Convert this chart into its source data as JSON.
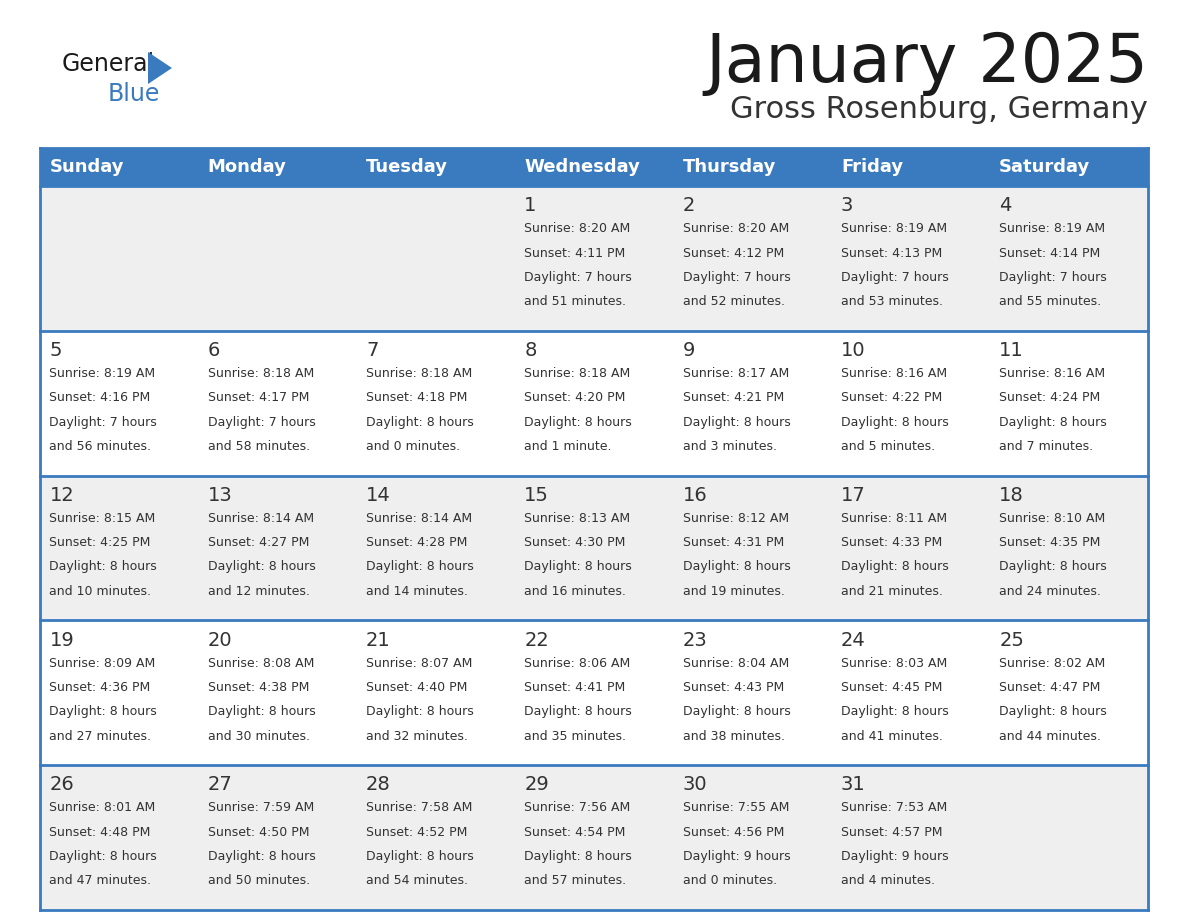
{
  "title": "January 2025",
  "subtitle": "Gross Rosenburg, Germany",
  "days_of_week": [
    "Sunday",
    "Monday",
    "Tuesday",
    "Wednesday",
    "Thursday",
    "Friday",
    "Saturday"
  ],
  "header_bg": "#3a7abf",
  "header_text": "#ffffff",
  "row_bg_even": "#efefef",
  "row_bg_odd": "#ffffff",
  "cell_text": "#333333",
  "day_num_color": "#333333",
  "border_color": "#3a7abf",
  "title_color": "#1a1a1a",
  "subtitle_color": "#333333",
  "logo_general_color": "#1a1a1a",
  "logo_blue_color": "#3a7abf",
  "calendar_data": [
    [
      {
        "day": null,
        "sunrise": null,
        "sunset": null,
        "daylight": null
      },
      {
        "day": null,
        "sunrise": null,
        "sunset": null,
        "daylight": null
      },
      {
        "day": null,
        "sunrise": null,
        "sunset": null,
        "daylight": null
      },
      {
        "day": 1,
        "sunrise": "8:20 AM",
        "sunset": "4:11 PM",
        "daylight": "7 hours",
        "daylight2": "and 51 minutes."
      },
      {
        "day": 2,
        "sunrise": "8:20 AM",
        "sunset": "4:12 PM",
        "daylight": "7 hours",
        "daylight2": "and 52 minutes."
      },
      {
        "day": 3,
        "sunrise": "8:19 AM",
        "sunset": "4:13 PM",
        "daylight": "7 hours",
        "daylight2": "and 53 minutes."
      },
      {
        "day": 4,
        "sunrise": "8:19 AM",
        "sunset": "4:14 PM",
        "daylight": "7 hours",
        "daylight2": "and 55 minutes."
      }
    ],
    [
      {
        "day": 5,
        "sunrise": "8:19 AM",
        "sunset": "4:16 PM",
        "daylight": "7 hours",
        "daylight2": "and 56 minutes."
      },
      {
        "day": 6,
        "sunrise": "8:18 AM",
        "sunset": "4:17 PM",
        "daylight": "7 hours",
        "daylight2": "and 58 minutes."
      },
      {
        "day": 7,
        "sunrise": "8:18 AM",
        "sunset": "4:18 PM",
        "daylight": "8 hours",
        "daylight2": "and 0 minutes."
      },
      {
        "day": 8,
        "sunrise": "8:18 AM",
        "sunset": "4:20 PM",
        "daylight": "8 hours",
        "daylight2": "and 1 minute."
      },
      {
        "day": 9,
        "sunrise": "8:17 AM",
        "sunset": "4:21 PM",
        "daylight": "8 hours",
        "daylight2": "and 3 minutes."
      },
      {
        "day": 10,
        "sunrise": "8:16 AM",
        "sunset": "4:22 PM",
        "daylight": "8 hours",
        "daylight2": "and 5 minutes."
      },
      {
        "day": 11,
        "sunrise": "8:16 AM",
        "sunset": "4:24 PM",
        "daylight": "8 hours",
        "daylight2": "and 7 minutes."
      }
    ],
    [
      {
        "day": 12,
        "sunrise": "8:15 AM",
        "sunset": "4:25 PM",
        "daylight": "8 hours",
        "daylight2": "and 10 minutes."
      },
      {
        "day": 13,
        "sunrise": "8:14 AM",
        "sunset": "4:27 PM",
        "daylight": "8 hours",
        "daylight2": "and 12 minutes."
      },
      {
        "day": 14,
        "sunrise": "8:14 AM",
        "sunset": "4:28 PM",
        "daylight": "8 hours",
        "daylight2": "and 14 minutes."
      },
      {
        "day": 15,
        "sunrise": "8:13 AM",
        "sunset": "4:30 PM",
        "daylight": "8 hours",
        "daylight2": "and 16 minutes."
      },
      {
        "day": 16,
        "sunrise": "8:12 AM",
        "sunset": "4:31 PM",
        "daylight": "8 hours",
        "daylight2": "and 19 minutes."
      },
      {
        "day": 17,
        "sunrise": "8:11 AM",
        "sunset": "4:33 PM",
        "daylight": "8 hours",
        "daylight2": "and 21 minutes."
      },
      {
        "day": 18,
        "sunrise": "8:10 AM",
        "sunset": "4:35 PM",
        "daylight": "8 hours",
        "daylight2": "and 24 minutes."
      }
    ],
    [
      {
        "day": 19,
        "sunrise": "8:09 AM",
        "sunset": "4:36 PM",
        "daylight": "8 hours",
        "daylight2": "and 27 minutes."
      },
      {
        "day": 20,
        "sunrise": "8:08 AM",
        "sunset": "4:38 PM",
        "daylight": "8 hours",
        "daylight2": "and 30 minutes."
      },
      {
        "day": 21,
        "sunrise": "8:07 AM",
        "sunset": "4:40 PM",
        "daylight": "8 hours",
        "daylight2": "and 32 minutes."
      },
      {
        "day": 22,
        "sunrise": "8:06 AM",
        "sunset": "4:41 PM",
        "daylight": "8 hours",
        "daylight2": "and 35 minutes."
      },
      {
        "day": 23,
        "sunrise": "8:04 AM",
        "sunset": "4:43 PM",
        "daylight": "8 hours",
        "daylight2": "and 38 minutes."
      },
      {
        "day": 24,
        "sunrise": "8:03 AM",
        "sunset": "4:45 PM",
        "daylight": "8 hours",
        "daylight2": "and 41 minutes."
      },
      {
        "day": 25,
        "sunrise": "8:02 AM",
        "sunset": "4:47 PM",
        "daylight": "8 hours",
        "daylight2": "and 44 minutes."
      }
    ],
    [
      {
        "day": 26,
        "sunrise": "8:01 AM",
        "sunset": "4:48 PM",
        "daylight": "8 hours",
        "daylight2": "and 47 minutes."
      },
      {
        "day": 27,
        "sunrise": "7:59 AM",
        "sunset": "4:50 PM",
        "daylight": "8 hours",
        "daylight2": "and 50 minutes."
      },
      {
        "day": 28,
        "sunrise": "7:58 AM",
        "sunset": "4:52 PM",
        "daylight": "8 hours",
        "daylight2": "and 54 minutes."
      },
      {
        "day": 29,
        "sunrise": "7:56 AM",
        "sunset": "4:54 PM",
        "daylight": "8 hours",
        "daylight2": "and 57 minutes."
      },
      {
        "day": 30,
        "sunrise": "7:55 AM",
        "sunset": "4:56 PM",
        "daylight": "9 hours",
        "daylight2": "and 0 minutes."
      },
      {
        "day": 31,
        "sunrise": "7:53 AM",
        "sunset": "4:57 PM",
        "daylight": "9 hours",
        "daylight2": "and 4 minutes."
      },
      {
        "day": null,
        "sunrise": null,
        "sunset": null,
        "daylight": null,
        "daylight2": null
      }
    ]
  ]
}
